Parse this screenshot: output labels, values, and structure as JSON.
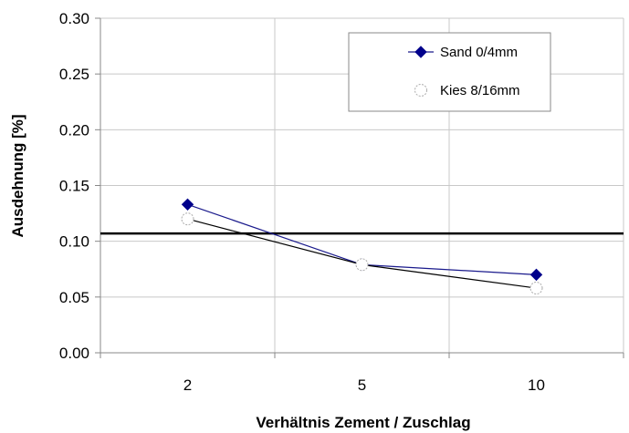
{
  "chart_data": {
    "type": "line",
    "categories": [
      "2",
      "5",
      "10"
    ],
    "series": [
      {
        "name": "Sand 0/4mm",
        "values": [
          0.133,
          0.079,
          0.07
        ],
        "color": "#1a1a8c",
        "marker": "diamond"
      },
      {
        "name": "Kies 8/16mm",
        "values": [
          0.12,
          0.079,
          0.058
        ],
        "color": "#000000",
        "marker": "open-circle"
      }
    ],
    "reference_line": {
      "value": 0.107,
      "color": "#000000"
    },
    "xlabel": "Verhältnis Zement / Zuschlag",
    "ylabel": "Ausdehnung [%]",
    "ylim": [
      0,
      0.3
    ],
    "yticks": [
      "0.00",
      "0.05",
      "0.10",
      "0.15",
      "0.20",
      "0.25",
      "0.30"
    ],
    "grid": true,
    "legend_position": "top-right"
  }
}
